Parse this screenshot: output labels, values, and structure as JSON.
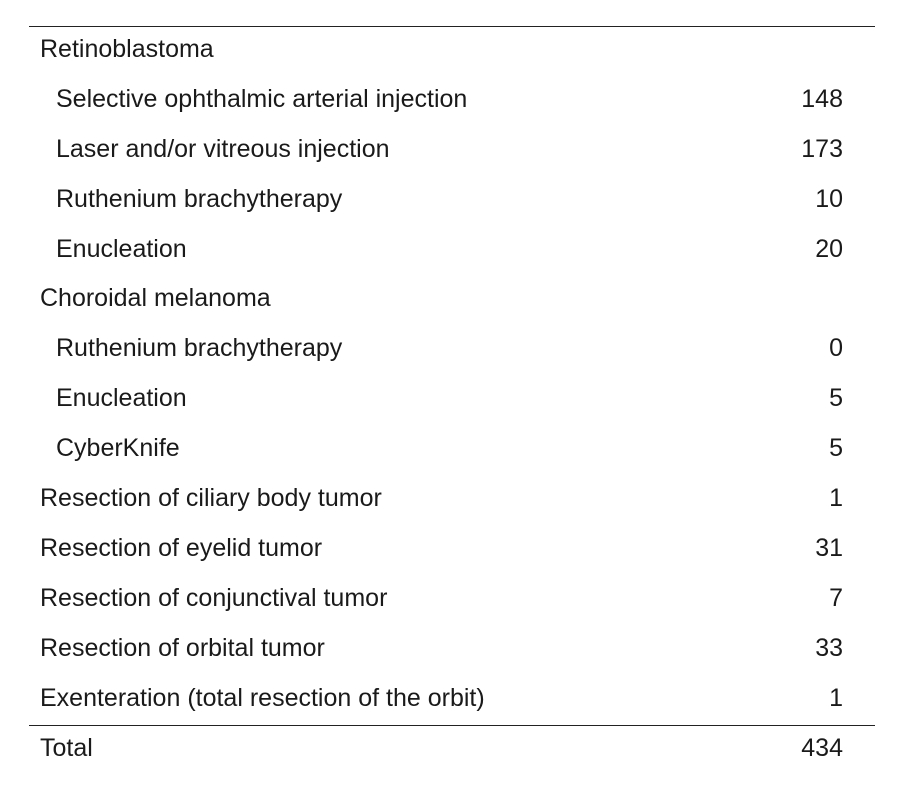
{
  "table": {
    "rows": [
      {
        "label": "Retinoblastoma",
        "value": "",
        "indent": false
      },
      {
        "label": "Selective ophthalmic arterial injection",
        "value": "148",
        "indent": true
      },
      {
        "label": "Laser and/or vitreous injection",
        "value": "173",
        "indent": true
      },
      {
        "label": "Ruthenium brachytherapy",
        "value": "10",
        "indent": true
      },
      {
        "label": "Enucleation",
        "value": "20",
        "indent": true
      },
      {
        "label": "Choroidal melanoma",
        "value": "",
        "indent": false
      },
      {
        "label": "Ruthenium brachytherapy",
        "value": "0",
        "indent": true
      },
      {
        "label": "Enucleation",
        "value": "5",
        "indent": true
      },
      {
        "label": "CyberKnife",
        "value": "5",
        "indent": true
      },
      {
        "label": "Resection of ciliary body tumor",
        "value": "1",
        "indent": false
      },
      {
        "label": "Resection of eyelid tumor",
        "value": "31",
        "indent": false
      },
      {
        "label": "Resection of conjunctival tumor",
        "value": "7",
        "indent": false
      },
      {
        "label": "Resection of orbital tumor",
        "value": "33",
        "indent": false
      },
      {
        "label": "Exenteration (total resection of the orbit)",
        "value": "1",
        "indent": false
      }
    ],
    "total": {
      "label": "Total",
      "value": "434"
    }
  }
}
